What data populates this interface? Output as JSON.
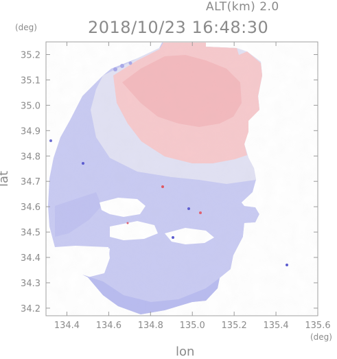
{
  "header": {
    "altitude_label": "ALT(km)  2.0",
    "timestamp": "2018/10/23  16:48:30"
  },
  "axes": {
    "lat_unit": "(deg)",
    "lon_unit": "(deg)",
    "x_title": "lon",
    "y_title": "lat",
    "x_ticks": [
      "134.4",
      "134.6",
      "134.8",
      "135.0",
      "135.2",
      "135.4",
      "135.6"
    ],
    "y_ticks": [
      "35.2",
      "35.1",
      "35.0",
      "34.9",
      "34.8",
      "34.7",
      "34.6",
      "34.5",
      "34.4",
      "34.3",
      "34.2"
    ]
  },
  "map": {
    "lon_range": [
      134.3,
      135.6
    ],
    "lat_range": [
      34.17,
      35.25
    ],
    "colors": {
      "positive": "#f7c6c9",
      "negative": "#c7c9f3",
      "neutral": "#eeeef4"
    }
  }
}
